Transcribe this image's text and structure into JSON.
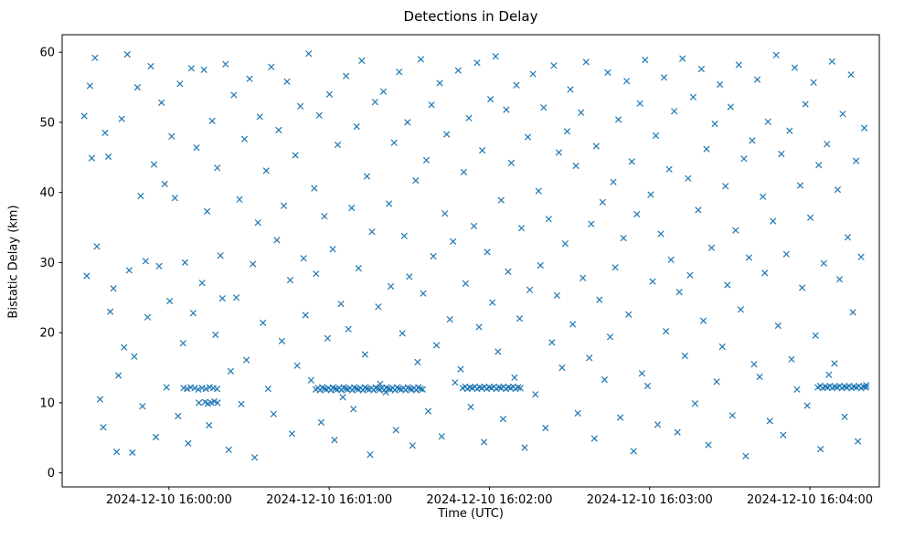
{
  "chart_data": {
    "type": "scatter",
    "title": "Detections in Delay",
    "xlabel": "Time (UTC)",
    "ylabel": "Bistatic Delay (km)",
    "marker": "x",
    "marker_color": "#1f77b4",
    "grid": false,
    "x_axis": {
      "unit": "seconds, 0 = 2024-12-10 15:59:20 UTC",
      "range": [
        0,
        306
      ],
      "ticks": [
        40,
        100,
        160,
        220,
        280
      ],
      "tick_labels": [
        "2024-12-10 16:00:00",
        "2024-12-10 16:01:00",
        "2024-12-10 16:02:00",
        "2024-12-10 16:03:00",
        "2024-12-10 16:04:00"
      ]
    },
    "y_axis": {
      "range": [
        -2,
        62.5
      ],
      "ticks": [
        0,
        10,
        20,
        30,
        40,
        50,
        60
      ],
      "tick_labels": [
        "0",
        "10",
        "20",
        "30",
        "40",
        "50",
        "60"
      ]
    },
    "points": [
      [
        8.3,
        50.9
      ],
      [
        9.2,
        28.1
      ],
      [
        10.4,
        55.2
      ],
      [
        11.1,
        44.9
      ],
      [
        12.3,
        59.2
      ],
      [
        13.0,
        32.3
      ],
      [
        14.2,
        10.5
      ],
      [
        15.4,
        6.5
      ],
      [
        16.1,
        48.5
      ],
      [
        17.3,
        45.1
      ],
      [
        18.0,
        23.0
      ],
      [
        19.2,
        26.3
      ],
      [
        20.4,
        3.0
      ],
      [
        21.1,
        13.9
      ],
      [
        22.3,
        50.5
      ],
      [
        23.2,
        17.9
      ],
      [
        24.4,
        59.7
      ],
      [
        25.1,
        28.9
      ],
      [
        26.3,
        2.9
      ],
      [
        27.0,
        16.6
      ],
      [
        28.2,
        55.0
      ],
      [
        29.4,
        39.5
      ],
      [
        30.1,
        9.5
      ],
      [
        31.3,
        30.2
      ],
      [
        32.0,
        22.2
      ],
      [
        33.2,
        58.0
      ],
      [
        34.4,
        44.0
      ],
      [
        35.1,
        5.1
      ],
      [
        36.3,
        29.5
      ],
      [
        37.2,
        52.8
      ],
      [
        38.4,
        41.2
      ],
      [
        39.1,
        12.2
      ],
      [
        40.3,
        24.5
      ],
      [
        41.0,
        48.0
      ],
      [
        42.2,
        39.2
      ],
      [
        43.4,
        8.1
      ],
      [
        44.1,
        55.5
      ],
      [
        45.3,
        18.5
      ],
      [
        46.0,
        30.0
      ],
      [
        47.2,
        4.2
      ],
      [
        48.4,
        57.7
      ],
      [
        49.1,
        22.8
      ],
      [
        50.3,
        46.4
      ],
      [
        51.2,
        10.0
      ],
      [
        52.4,
        27.1
      ],
      [
        53.1,
        57.5
      ],
      [
        54.3,
        37.3
      ],
      [
        55.0,
        6.8
      ],
      [
        56.2,
        50.2
      ],
      [
        57.4,
        19.7
      ],
      [
        58.1,
        43.5
      ],
      [
        59.3,
        31.0
      ],
      [
        60.0,
        24.9
      ],
      [
        61.2,
        58.3
      ],
      [
        62.4,
        3.3
      ],
      [
        63.1,
        14.5
      ],
      [
        64.3,
        53.9
      ],
      [
        65.2,
        25.0
      ],
      [
        66.4,
        39.0
      ],
      [
        67.1,
        9.8
      ],
      [
        68.3,
        47.6
      ],
      [
        69.0,
        16.1
      ],
      [
        70.2,
        56.2
      ],
      [
        71.4,
        29.8
      ],
      [
        72.1,
        2.2
      ],
      [
        73.3,
        35.7
      ],
      [
        74.0,
        50.8
      ],
      [
        75.2,
        21.4
      ],
      [
        76.4,
        43.1
      ],
      [
        77.1,
        12.0
      ],
      [
        78.3,
        57.9
      ],
      [
        79.2,
        8.4
      ],
      [
        80.4,
        33.2
      ],
      [
        81.1,
        48.9
      ],
      [
        82.3,
        18.8
      ],
      [
        83.0,
        38.1
      ],
      [
        84.2,
        55.8
      ],
      [
        85.4,
        27.5
      ],
      [
        86.1,
        5.6
      ],
      [
        87.3,
        45.3
      ],
      [
        88.0,
        15.3
      ],
      [
        89.2,
        52.3
      ],
      [
        90.4,
        30.6
      ],
      [
        91.1,
        22.5
      ],
      [
        92.3,
        59.8
      ],
      [
        93.2,
        13.2
      ],
      [
        94.4,
        40.6
      ],
      [
        95.1,
        28.4
      ],
      [
        96.3,
        51.0
      ],
      [
        97.0,
        7.2
      ],
      [
        98.2,
        36.6
      ],
      [
        99.4,
        19.2
      ],
      [
        100.1,
        54.0
      ],
      [
        101.3,
        31.9
      ],
      [
        102.0,
        4.7
      ],
      [
        103.2,
        46.8
      ],
      [
        104.4,
        24.1
      ],
      [
        105.1,
        10.8
      ],
      [
        106.3,
        56.6
      ],
      [
        107.2,
        20.5
      ],
      [
        108.4,
        37.8
      ],
      [
        109.1,
        9.1
      ],
      [
        110.3,
        49.4
      ],
      [
        111.0,
        29.2
      ],
      [
        112.2,
        58.8
      ],
      [
        113.4,
        16.9
      ],
      [
        114.1,
        42.3
      ],
      [
        115.3,
        2.6
      ],
      [
        116.0,
        34.4
      ],
      [
        117.2,
        52.9
      ],
      [
        118.4,
        23.7
      ],
      [
        119.1,
        12.7
      ],
      [
        120.3,
        54.4
      ],
      [
        121.2,
        11.5
      ],
      [
        122.4,
        38.4
      ],
      [
        123.1,
        26.6
      ],
      [
        124.3,
        47.1
      ],
      [
        125.0,
        6.1
      ],
      [
        126.2,
        57.2
      ],
      [
        127.4,
        19.9
      ],
      [
        128.1,
        33.8
      ],
      [
        129.3,
        50.0
      ],
      [
        130.0,
        28.0
      ],
      [
        131.2,
        3.9
      ],
      [
        132.4,
        41.7
      ],
      [
        133.1,
        15.8
      ],
      [
        134.3,
        59.0
      ],
      [
        135.2,
        25.6
      ],
      [
        136.4,
        44.6
      ],
      [
        137.1,
        8.8
      ],
      [
        138.3,
        52.5
      ],
      [
        139.0,
        30.9
      ],
      [
        140.2,
        18.2
      ],
      [
        141.4,
        55.6
      ],
      [
        142.1,
        5.2
      ],
      [
        143.3,
        37.0
      ],
      [
        144.0,
        48.3
      ],
      [
        145.2,
        21.9
      ],
      [
        146.4,
        33.0
      ],
      [
        147.1,
        12.9
      ],
      [
        148.3,
        57.4
      ],
      [
        149.2,
        14.8
      ],
      [
        150.4,
        42.9
      ],
      [
        151.1,
        27.0
      ],
      [
        152.3,
        50.6
      ],
      [
        153.0,
        9.4
      ],
      [
        154.2,
        35.2
      ],
      [
        155.4,
        58.5
      ],
      [
        156.1,
        20.8
      ],
      [
        157.3,
        46.0
      ],
      [
        158.0,
        4.4
      ],
      [
        159.2,
        31.5
      ],
      [
        160.4,
        53.3
      ],
      [
        161.1,
        24.3
      ],
      [
        162.3,
        59.4
      ],
      [
        163.2,
        17.3
      ],
      [
        164.4,
        38.9
      ],
      [
        165.1,
        7.7
      ],
      [
        166.3,
        51.8
      ],
      [
        167.0,
        28.7
      ],
      [
        168.2,
        44.2
      ],
      [
        169.4,
        13.6
      ],
      [
        170.1,
        55.3
      ],
      [
        171.3,
        22.0
      ],
      [
        172.0,
        34.9
      ],
      [
        173.2,
        3.6
      ],
      [
        174.4,
        47.9
      ],
      [
        175.1,
        26.1
      ],
      [
        176.3,
        56.9
      ],
      [
        177.2,
        11.2
      ],
      [
        178.4,
        40.2
      ],
      [
        179.1,
        29.6
      ],
      [
        180.3,
        52.1
      ],
      [
        181.0,
        6.4
      ],
      [
        182.2,
        36.2
      ],
      [
        183.4,
        18.6
      ],
      [
        184.1,
        58.1
      ],
      [
        185.3,
        25.3
      ],
      [
        186.0,
        45.7
      ],
      [
        187.2,
        15.0
      ],
      [
        188.4,
        32.7
      ],
      [
        189.1,
        48.7
      ],
      [
        190.3,
        54.7
      ],
      [
        191.2,
        21.2
      ],
      [
        192.4,
        43.8
      ],
      [
        193.1,
        8.5
      ],
      [
        194.3,
        51.4
      ],
      [
        195.0,
        27.8
      ],
      [
        196.2,
        58.6
      ],
      [
        197.4,
        16.4
      ],
      [
        198.1,
        35.5
      ],
      [
        199.3,
        4.9
      ],
      [
        200.0,
        46.6
      ],
      [
        201.2,
        24.7
      ],
      [
        202.4,
        38.6
      ],
      [
        203.1,
        13.3
      ],
      [
        204.3,
        57.1
      ],
      [
        205.2,
        19.4
      ],
      [
        206.4,
        41.5
      ],
      [
        207.1,
        29.3
      ],
      [
        208.3,
        50.4
      ],
      [
        209.0,
        7.9
      ],
      [
        210.2,
        33.5
      ],
      [
        211.4,
        55.9
      ],
      [
        212.1,
        22.6
      ],
      [
        213.3,
        44.4
      ],
      [
        214.0,
        3.1
      ],
      [
        215.2,
        36.9
      ],
      [
        216.4,
        52.7
      ],
      [
        217.1,
        14.2
      ],
      [
        218.3,
        58.9
      ],
      [
        219.2,
        12.4
      ],
      [
        220.4,
        39.7
      ],
      [
        221.1,
        27.3
      ],
      [
        222.3,
        48.1
      ],
      [
        223.0,
        6.9
      ],
      [
        224.2,
        34.1
      ],
      [
        225.4,
        56.4
      ],
      [
        226.1,
        20.2
      ],
      [
        227.3,
        43.3
      ],
      [
        228.0,
        30.4
      ],
      [
        229.2,
        51.6
      ],
      [
        230.4,
        5.8
      ],
      [
        231.1,
        25.8
      ],
      [
        232.3,
        59.1
      ],
      [
        233.2,
        16.7
      ],
      [
        234.4,
        42.0
      ],
      [
        235.1,
        28.2
      ],
      [
        236.3,
        53.6
      ],
      [
        237.0,
        9.9
      ],
      [
        238.2,
        37.5
      ],
      [
        239.4,
        57.6
      ],
      [
        240.1,
        21.7
      ],
      [
        241.3,
        46.2
      ],
      [
        242.0,
        4.0
      ],
      [
        243.2,
        32.1
      ],
      [
        244.4,
        49.8
      ],
      [
        245.1,
        13.0
      ],
      [
        246.3,
        55.4
      ],
      [
        247.2,
        18.0
      ],
      [
        248.4,
        40.9
      ],
      [
        249.1,
        26.8
      ],
      [
        250.3,
        52.2
      ],
      [
        251.0,
        8.2
      ],
      [
        252.2,
        34.6
      ],
      [
        253.4,
        58.2
      ],
      [
        254.1,
        23.3
      ],
      [
        255.3,
        44.8
      ],
      [
        256.0,
        2.4
      ],
      [
        257.2,
        30.7
      ],
      [
        258.4,
        47.4
      ],
      [
        259.1,
        15.5
      ],
      [
        260.3,
        56.1
      ],
      [
        261.2,
        13.7
      ],
      [
        262.4,
        39.4
      ],
      [
        263.1,
        28.5
      ],
      [
        264.3,
        50.1
      ],
      [
        265.0,
        7.4
      ],
      [
        266.2,
        35.9
      ],
      [
        267.4,
        59.6
      ],
      [
        268.1,
        21.0
      ],
      [
        269.3,
        45.5
      ],
      [
        270.0,
        5.4
      ],
      [
        271.2,
        31.2
      ],
      [
        272.4,
        48.8
      ],
      [
        273.1,
        16.2
      ],
      [
        274.3,
        57.8
      ],
      [
        275.2,
        11.9
      ],
      [
        276.4,
        41.0
      ],
      [
        277.1,
        26.4
      ],
      [
        278.3,
        52.6
      ],
      [
        279.0,
        9.6
      ],
      [
        280.2,
        36.4
      ],
      [
        281.4,
        55.7
      ],
      [
        282.1,
        19.6
      ],
      [
        283.3,
        43.9
      ],
      [
        284.0,
        3.4
      ],
      [
        285.2,
        29.9
      ],
      [
        286.4,
        46.9
      ],
      [
        287.1,
        14.0
      ],
      [
        288.3,
        58.7
      ],
      [
        289.2,
        15.6
      ],
      [
        290.4,
        40.4
      ],
      [
        291.1,
        27.6
      ],
      [
        292.3,
        51.2
      ],
      [
        293.0,
        8.0
      ],
      [
        294.2,
        33.6
      ],
      [
        295.4,
        56.8
      ],
      [
        296.1,
        22.9
      ],
      [
        297.3,
        44.5
      ],
      [
        298.0,
        4.5
      ],
      [
        299.2,
        30.8
      ],
      [
        300.4,
        49.2
      ],
      [
        301.1,
        12.5
      ],
      [
        45.5,
        12.1
      ],
      [
        46.8,
        12.0
      ],
      [
        48.2,
        12.2
      ],
      [
        49.6,
        12.1
      ],
      [
        51.0,
        11.9
      ],
      [
        52.4,
        12.1
      ],
      [
        53.8,
        12.0
      ],
      [
        55.2,
        12.2
      ],
      [
        56.6,
        12.1
      ],
      [
        58.0,
        12.0
      ],
      [
        53.5,
        10.1
      ],
      [
        54.6,
        9.9
      ],
      [
        55.8,
        10.0
      ],
      [
        57.0,
        10.2
      ],
      [
        58.2,
        10.0
      ],
      [
        95.0,
        11.9
      ],
      [
        95.8,
        12.1
      ],
      [
        96.6,
        11.8
      ],
      [
        97.4,
        12.2
      ],
      [
        98.2,
        12.0
      ],
      [
        99.0,
        11.9
      ],
      [
        99.8,
        12.1
      ],
      [
        100.6,
        11.8
      ],
      [
        101.4,
        12.2
      ],
      [
        102.2,
        12.0
      ],
      [
        103.0,
        11.9
      ],
      [
        103.8,
        12.1
      ],
      [
        104.6,
        11.8
      ],
      [
        105.4,
        12.2
      ],
      [
        106.2,
        12.0
      ],
      [
        107.0,
        11.9
      ],
      [
        107.8,
        12.1
      ],
      [
        108.6,
        11.8
      ],
      [
        109.4,
        12.2
      ],
      [
        110.2,
        12.0
      ],
      [
        111.0,
        11.9
      ],
      [
        111.8,
        12.1
      ],
      [
        112.6,
        11.8
      ],
      [
        113.4,
        12.2
      ],
      [
        114.2,
        12.0
      ],
      [
        115.0,
        11.9
      ],
      [
        115.8,
        12.1
      ],
      [
        116.6,
        11.8
      ],
      [
        117.4,
        12.2
      ],
      [
        118.2,
        12.0
      ],
      [
        119.0,
        11.9
      ],
      [
        119.8,
        12.1
      ],
      [
        120.6,
        11.8
      ],
      [
        121.4,
        12.2
      ],
      [
        122.2,
        12.0
      ],
      [
        123.0,
        11.9
      ],
      [
        123.8,
        12.1
      ],
      [
        124.6,
        11.8
      ],
      [
        125.4,
        12.2
      ],
      [
        126.2,
        12.0
      ],
      [
        127.0,
        11.9
      ],
      [
        127.8,
        12.1
      ],
      [
        128.6,
        11.8
      ],
      [
        129.4,
        12.2
      ],
      [
        130.2,
        12.0
      ],
      [
        131.0,
        11.9
      ],
      [
        131.8,
        12.1
      ],
      [
        132.6,
        11.8
      ],
      [
        133.4,
        12.2
      ],
      [
        134.2,
        12.0
      ],
      [
        135.0,
        11.9
      ],
      [
        150.0,
        12.1
      ],
      [
        150.9,
        12.3
      ],
      [
        151.8,
        12.0
      ],
      [
        152.7,
        12.2
      ],
      [
        153.6,
        12.1
      ],
      [
        154.5,
        12.3
      ],
      [
        155.4,
        12.0
      ],
      [
        156.3,
        12.2
      ],
      [
        157.2,
        12.1
      ],
      [
        158.1,
        12.3
      ],
      [
        159.0,
        12.0
      ],
      [
        159.9,
        12.2
      ],
      [
        160.8,
        12.1
      ],
      [
        161.7,
        12.3
      ],
      [
        162.6,
        12.0
      ],
      [
        163.5,
        12.2
      ],
      [
        164.4,
        12.1
      ],
      [
        165.3,
        12.3
      ],
      [
        166.2,
        12.0
      ],
      [
        167.1,
        12.2
      ],
      [
        168.0,
        12.1
      ],
      [
        168.9,
        12.3
      ],
      [
        169.8,
        12.0
      ],
      [
        170.7,
        12.2
      ],
      [
        171.6,
        12.1
      ],
      [
        283.0,
        12.2
      ],
      [
        283.9,
        12.4
      ],
      [
        284.8,
        12.1
      ],
      [
        285.7,
        12.3
      ],
      [
        286.6,
        12.2
      ],
      [
        287.5,
        12.4
      ],
      [
        288.4,
        12.1
      ],
      [
        289.3,
        12.3
      ],
      [
        290.2,
        12.2
      ],
      [
        291.1,
        12.4
      ],
      [
        292.0,
        12.1
      ],
      [
        292.9,
        12.3
      ],
      [
        293.8,
        12.2
      ],
      [
        294.7,
        12.4
      ],
      [
        295.6,
        12.1
      ],
      [
        296.5,
        12.3
      ],
      [
        297.4,
        12.2
      ],
      [
        298.3,
        12.4
      ],
      [
        299.2,
        12.1
      ],
      [
        300.1,
        12.3
      ],
      [
        301.0,
        12.2
      ]
    ]
  }
}
